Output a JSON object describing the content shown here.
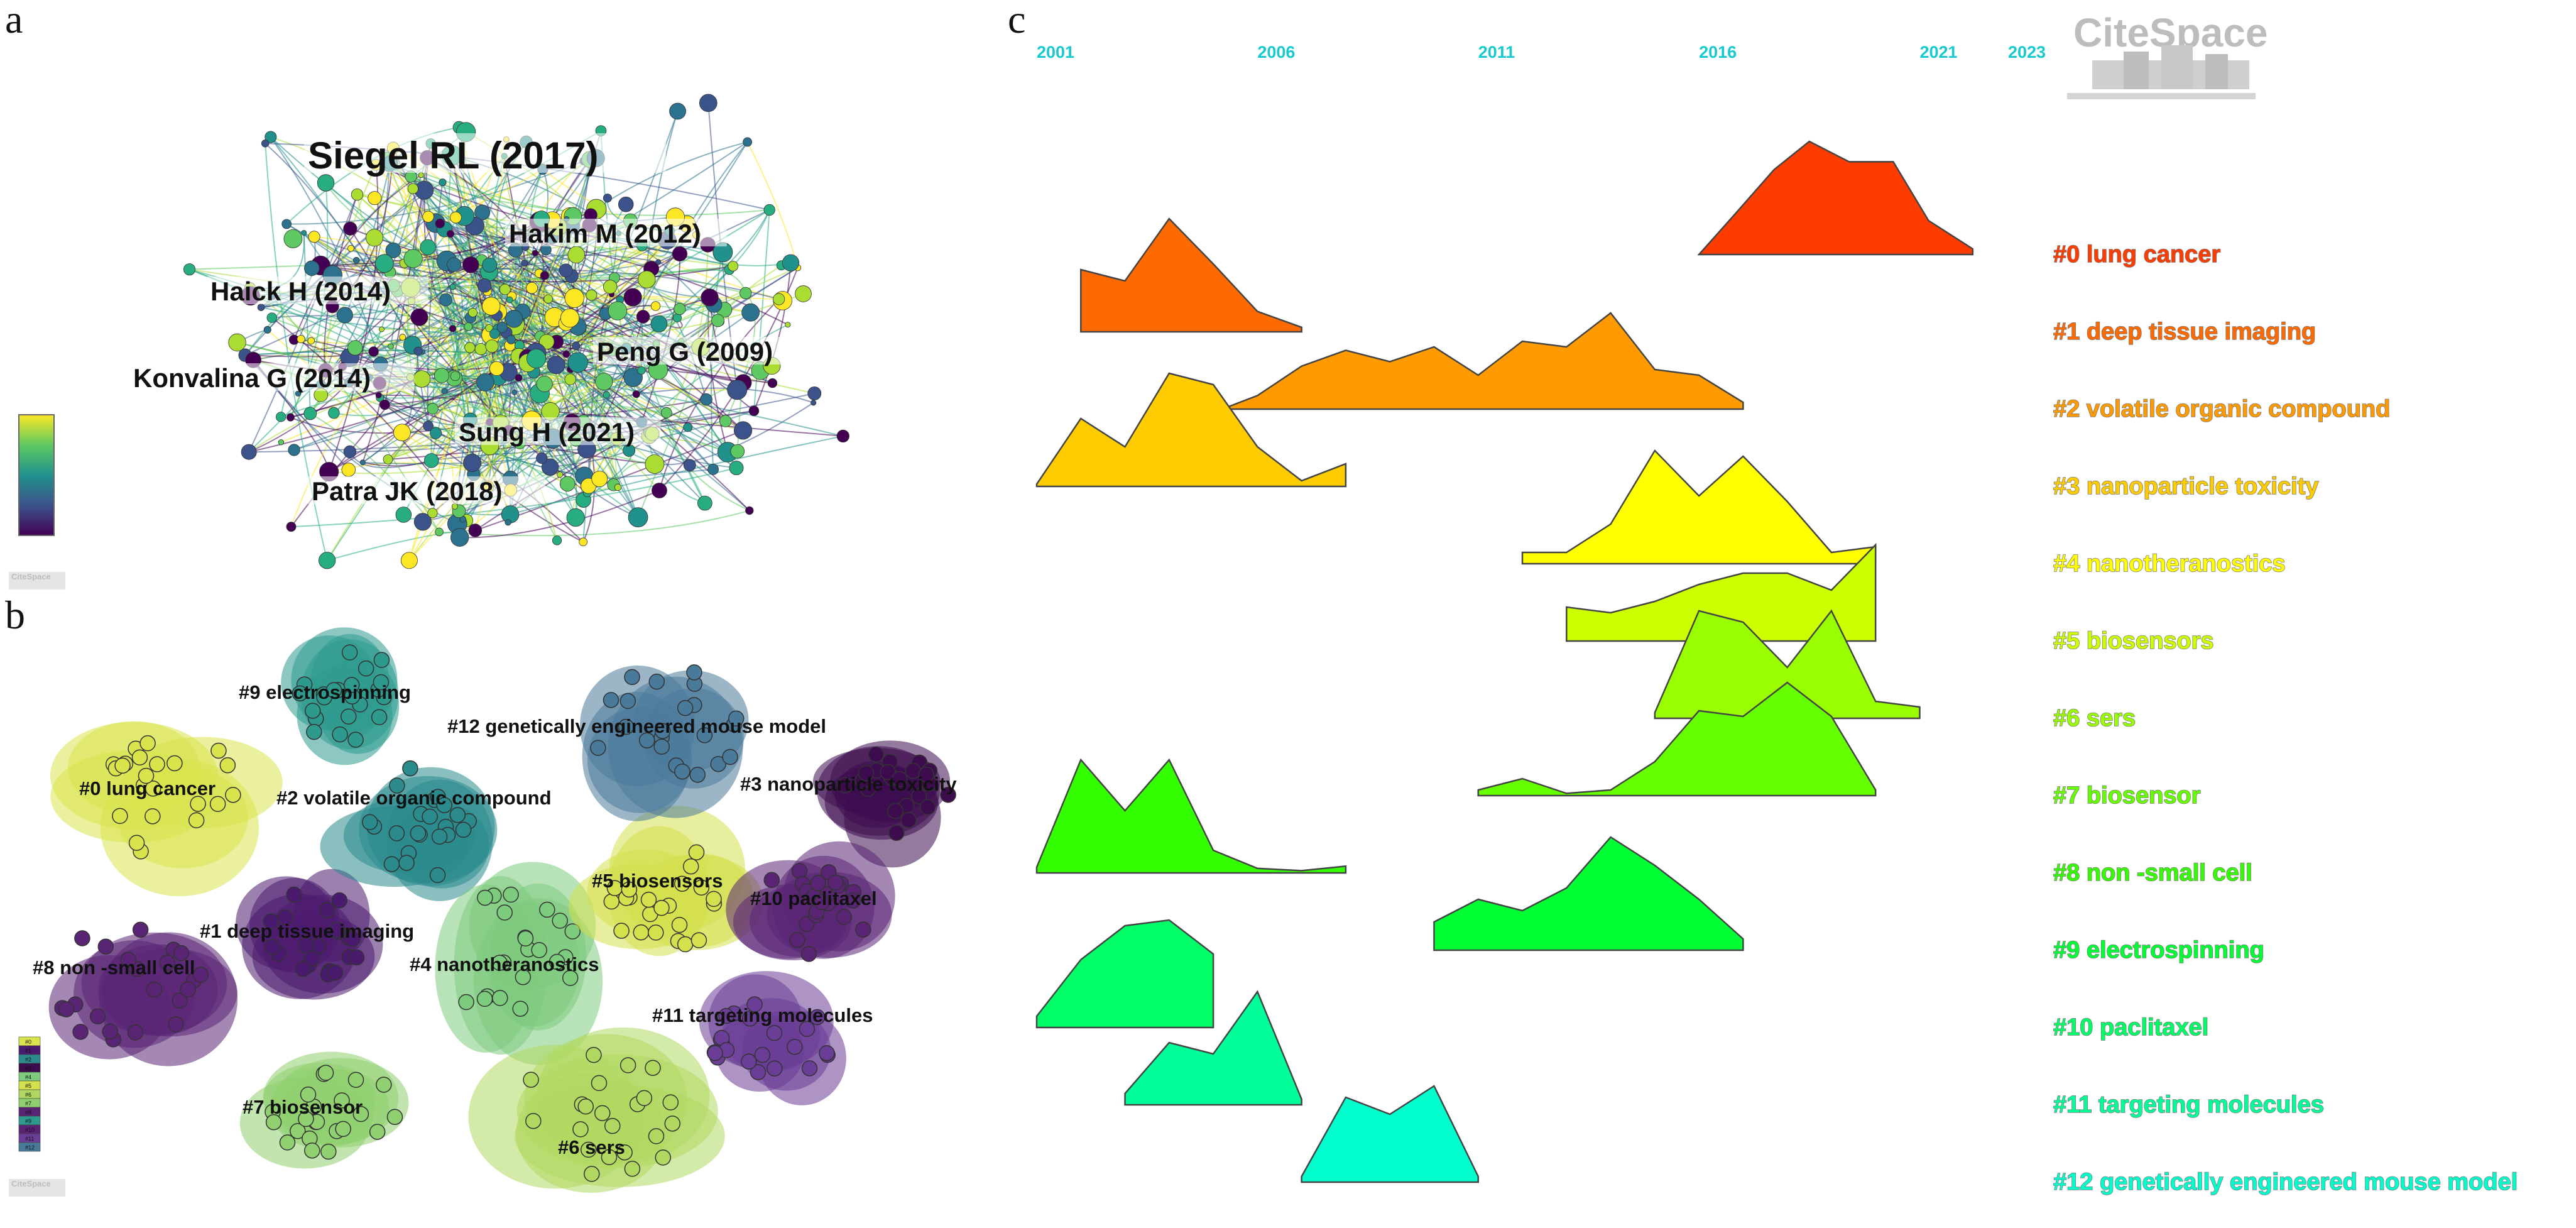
{
  "panels": {
    "a": {
      "letter": "a"
    },
    "b": {
      "letter": "b"
    },
    "c": {
      "letter": "c"
    }
  },
  "network_labels": [
    {
      "text": "Siegel RL (2017)",
      "size": "large"
    },
    {
      "text": "Hakim M (2012)",
      "size": "medium"
    },
    {
      "text": "Haick H (2014)",
      "size": "medium"
    },
    {
      "text": "Peng G (2009)",
      "size": "medium"
    },
    {
      "text": "Konvalina G (2014)",
      "size": "medium"
    },
    {
      "text": "Sung H (2021)",
      "size": "medium"
    },
    {
      "text": "Patra JK (2018)",
      "size": "medium"
    }
  ],
  "cluster_labels": [
    {
      "id": 0,
      "text": "#0 lung cancer",
      "color": "#d9e34c"
    },
    {
      "id": 1,
      "text": "#1 deep tissue imaging",
      "color": "#4a1a6e"
    },
    {
      "id": 2,
      "text": "#2 volatile organic compound",
      "color": "#2a8a8c"
    },
    {
      "id": 3,
      "text": "#3 nanoparticle toxicity",
      "color": "#3d0c4e"
    },
    {
      "id": 4,
      "text": "#4 nanotheranostics",
      "color": "#7dcb7d"
    },
    {
      "id": 5,
      "text": "#5 biosensors",
      "color": "#d4e04c"
    },
    {
      "id": 6,
      "text": "#6 sers",
      "color": "#b0d860"
    },
    {
      "id": 7,
      "text": "#7 biosensor",
      "color": "#90d070"
    },
    {
      "id": 8,
      "text": "#8 non -small cell",
      "color": "#5a2474"
    },
    {
      "id": 9,
      "text": "#9 electrospinning",
      "color": "#2e9a8e"
    },
    {
      "id": 10,
      "text": "#10 paclitaxel",
      "color": "#5a2474"
    },
    {
      "id": 11,
      "text": "#11 targeting molecules",
      "color": "#6a3d96"
    },
    {
      "id": 12,
      "text": "#12 genetically engineered mouse model",
      "color": "#4a7a9a"
    }
  ],
  "timeline": {
    "years": [
      "2001",
      "2006",
      "2011",
      "2016",
      "2021",
      "2023"
    ],
    "year_start": 2001,
    "year_end": 2023,
    "clusters": [
      {
        "label": "#0 lung cancer",
        "color": "#ff3c00",
        "points": [
          [
            2016.0,
            0
          ],
          [
            2016.8,
            0.35
          ],
          [
            2017.7,
            0.75
          ],
          [
            2018.5,
            1.0
          ],
          [
            2019.4,
            0.82
          ],
          [
            2020.4,
            0.82
          ],
          [
            2021.2,
            0.3
          ],
          [
            2022.2,
            0.05
          ]
        ]
      },
      {
        "label": "#1 deep tissue imaging",
        "color": "#ff6a00",
        "points": [
          [
            2002.0,
            0
          ],
          [
            2002.0,
            0.55
          ],
          [
            2003.0,
            0.45
          ],
          [
            2004.0,
            1.0
          ],
          [
            2005.0,
            0.6
          ],
          [
            2006.0,
            0.18
          ],
          [
            2007.0,
            0.04
          ]
        ]
      },
      {
        "label": "#2 volatile organic compound",
        "color": "#ff9a00",
        "points": [
          [
            2005.2,
            0
          ],
          [
            2006.0,
            0.12
          ],
          [
            2007.0,
            0.38
          ],
          [
            2008.0,
            0.52
          ],
          [
            2009.0,
            0.42
          ],
          [
            2010.0,
            0.55
          ],
          [
            2011.0,
            0.3
          ],
          [
            2012.0,
            0.6
          ],
          [
            2013.0,
            0.55
          ],
          [
            2014.0,
            0.85
          ],
          [
            2015.0,
            0.35
          ],
          [
            2016.0,
            0.3
          ],
          [
            2017.0,
            0.06
          ]
        ]
      },
      {
        "label": "#3 nanoparticle toxicity",
        "color": "#ffcc00",
        "points": [
          [
            2001.0,
            0.02
          ],
          [
            2002.0,
            0.6
          ],
          [
            2003.0,
            0.35
          ],
          [
            2004.0,
            1.0
          ],
          [
            2005.0,
            0.9
          ],
          [
            2006.0,
            0.35
          ],
          [
            2007.0,
            0.05
          ],
          [
            2008.0,
            0.2
          ]
        ]
      },
      {
        "label": "#4 nanotheranostics",
        "color": "#ffff00",
        "points": [
          [
            2012.0,
            0.1
          ],
          [
            2013.0,
            0.1
          ],
          [
            2014.0,
            0.35
          ],
          [
            2015.0,
            1.0
          ],
          [
            2016.0,
            0.6
          ],
          [
            2017.0,
            0.95
          ],
          [
            2018.0,
            0.55
          ],
          [
            2019.0,
            0.1
          ],
          [
            2020.0,
            0.15
          ]
        ]
      },
      {
        "label": "#5 biosensors",
        "color": "#ccff00",
        "points": [
          [
            2013.0,
            0.3
          ],
          [
            2014.0,
            0.25
          ],
          [
            2015.0,
            0.35
          ],
          [
            2016.0,
            0.5
          ],
          [
            2017.0,
            0.6
          ],
          [
            2018.0,
            0.6
          ],
          [
            2019.0,
            0.45
          ],
          [
            2020.0,
            0.85
          ]
        ]
      },
      {
        "label": "#6 sers",
        "color": "#99ff00",
        "points": [
          [
            2015.0,
            0.05
          ],
          [
            2016.0,
            0.95
          ],
          [
            2017.0,
            0.85
          ],
          [
            2018.0,
            0.45
          ],
          [
            2019.0,
            0.95
          ],
          [
            2020.0,
            0.15
          ],
          [
            2021.0,
            0.1
          ]
        ]
      },
      {
        "label": "#7 biosensor",
        "color": "#66ff00",
        "points": [
          [
            2011.0,
            0.05
          ],
          [
            2012.0,
            0.15
          ],
          [
            2013.0,
            0.02
          ],
          [
            2014.0,
            0.05
          ],
          [
            2015.0,
            0.3
          ],
          [
            2016.0,
            0.75
          ],
          [
            2017.0,
            0.7
          ],
          [
            2018.0,
            1.0
          ],
          [
            2019.0,
            0.7
          ],
          [
            2020.0,
            0.05
          ]
        ]
      },
      {
        "label": "#8 non -small cell",
        "color": "#33ff00",
        "points": [
          [
            2001.0,
            0.05
          ],
          [
            2002.0,
            1.0
          ],
          [
            2003.0,
            0.55
          ],
          [
            2004.0,
            1.0
          ],
          [
            2005.0,
            0.2
          ],
          [
            2006.0,
            0.04
          ],
          [
            2007.0,
            0.02
          ],
          [
            2008.0,
            0.06
          ]
        ]
      },
      {
        "label": "#9 electrospinning",
        "color": "#00ff33",
        "points": [
          [
            2010.0,
            0.25
          ],
          [
            2011.0,
            0.45
          ],
          [
            2012.0,
            0.35
          ],
          [
            2013.0,
            0.55
          ],
          [
            2014.0,
            1.0
          ],
          [
            2015.0,
            0.75
          ],
          [
            2016.0,
            0.45
          ],
          [
            2017.0,
            0.1
          ]
        ]
      },
      {
        "label": "#10 paclitaxel",
        "color": "#00ff66",
        "points": [
          [
            2001.0,
            0.1
          ],
          [
            2002.0,
            0.6
          ],
          [
            2003.0,
            0.9
          ],
          [
            2004.0,
            0.95
          ],
          [
            2005.0,
            0.65
          ],
          [
            2005.0,
            0.0
          ]
        ]
      },
      {
        "label": "#11 targeting molecules",
        "color": "#00ff99",
        "points": [
          [
            2003.0,
            0.1
          ],
          [
            2004.0,
            0.55
          ],
          [
            2005.0,
            0.45
          ],
          [
            2006.0,
            1.0
          ],
          [
            2007.0,
            0.05
          ]
        ]
      },
      {
        "label": "#12 genetically engineered mouse model",
        "color": "#00ffcc",
        "points": [
          [
            2007.0,
            0.05
          ],
          [
            2008.0,
            0.75
          ],
          [
            2009.0,
            0.6
          ],
          [
            2010.0,
            0.85
          ],
          [
            2011.0,
            0.05
          ]
        ]
      }
    ]
  },
  "logo": {
    "text": "CiteSpace"
  },
  "legend_small_labels": [
    "#0",
    "#1",
    "#2",
    "#3",
    "#4",
    "#5",
    "#6",
    "#7",
    "#8",
    "#9",
    "#10",
    "#11",
    "#12"
  ]
}
